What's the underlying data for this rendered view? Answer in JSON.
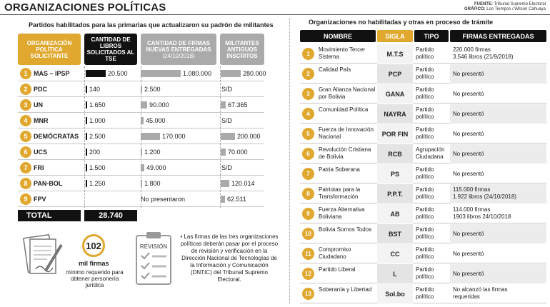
{
  "title": "ORGANIZACIONES POLÍTICAS",
  "source": {
    "fuente_label": "FUENTE:",
    "fuente": "Tribunal Supremo Electoral",
    "grafico_label": "GRÁFICO:",
    "grafico": "Los Tiempos / Wilson Cahuaya"
  },
  "left": {
    "heading": "Partidos habilitados para las primarias que actualizaron su padrón de militantes",
    "col1": "ORGANIZACIÓN POLÍTICA SOLICITANTE",
    "col2": "CANTIDAD DE LIBROS SOLICITADOS AL TSE",
    "col3": "CANTIDAD DE FIRMAS NUEVAS ENTREGADAS",
    "col3_sub": "(24/10/2018)",
    "col4": "MILITANTES ANTIGUOS INSCRITOS",
    "rows": [
      {
        "n": "1",
        "name": "MAS – IPSP",
        "libros": "20.500",
        "firmas": "1.080.000",
        "militantes": "280.000",
        "lb": 1.0,
        "fb": 1.0,
        "mb": 1.0
      },
      {
        "n": "2",
        "name": "PDC",
        "libros": "140",
        "firmas": "2.500",
        "militantes": "S/D",
        "lb": 0.01,
        "fb": 0.0,
        "mb": 0
      },
      {
        "n": "3",
        "name": "UN",
        "libros": "1.650",
        "firmas": "90.000",
        "militantes": "67.365",
        "lb": 0.02,
        "fb": 0.16,
        "mb": 0.24
      },
      {
        "n": "4",
        "name": "MNR",
        "libros": "1.000",
        "firmas": "45.000",
        "militantes": "S/D",
        "lb": 0.01,
        "fb": 0.08,
        "mb": 0
      },
      {
        "n": "5",
        "name": "DEMÓCRATAS",
        "libros": "2.500",
        "firmas": "170.000",
        "militantes": "200.000",
        "lb": 0.05,
        "fb": 0.48,
        "mb": 0.72
      },
      {
        "n": "6",
        "name": "UCS",
        "libros": "200",
        "firmas": "1.200",
        "militantes": "70.000",
        "lb": 0.0,
        "fb": 0.0,
        "mb": 0.25
      },
      {
        "n": "7",
        "name": "FRI",
        "libros": "1.500",
        "firmas": "49.000",
        "militantes": "S/D",
        "lb": 0.02,
        "fb": 0.09,
        "mb": 0
      },
      {
        "n": "8",
        "name": "PAN-BOL",
        "libros": "1.250",
        "firmas": "1.800",
        "militantes": "120.014",
        "lb": 0.02,
        "fb": 0.0,
        "mb": 0.43
      },
      {
        "n": "9",
        "name": "FPV",
        "libros": "",
        "firmas": "No presentaron",
        "militantes": "62.511",
        "lb": 0,
        "fb": 0,
        "mb": 0.22
      }
    ],
    "total_label": "TOTAL",
    "total_value": "28.740",
    "big_number": "102",
    "big_unit": "mil firmas",
    "big_caption": "mínimo requerido para obtener personería jurídica",
    "revision_label": "REVISIÓN",
    "note": "• Las firmas de las tres organizaciones políticas deberán pasar por el proceso de revisión y verificación en la Dirección Nacional de Tecnologías de la Información y Comunicación (DNTIC) del Tribunal Supremo Electoral."
  },
  "right": {
    "heading": "Organizaciones no habilitadas y otras en proceso de trámite",
    "col1": "NOMBRE",
    "col2": "SIGLA",
    "col3": "TIPO",
    "col4": "FIRMAS ENTREGADAS",
    "rows": [
      {
        "n": "1",
        "name": "Movimiento Tercer Sistema",
        "sigla": "M.T.S",
        "tipo": "Partido político",
        "firmas": "220.000 firmas",
        "firmas2": "3.546 libros (21/9/2018)"
      },
      {
        "n": "2",
        "name": "Calidad País",
        "sigla": "PCP",
        "tipo": "Partido político",
        "firmas": "No presentó",
        "firmas2": ""
      },
      {
        "n": "3",
        "name": "Gran Alianza Nacional por Bolivia",
        "sigla": "GANA",
        "tipo": "Partido político",
        "firmas": "No presentó",
        "firmas2": ""
      },
      {
        "n": "4",
        "name": "Comunidad Política",
        "sigla": "NAYRA",
        "tipo": "Partido político",
        "firmas": "No presentó",
        "firmas2": ""
      },
      {
        "n": "5",
        "name": "Fuerza de Innovación Nacional",
        "sigla": "POR FIN",
        "tipo": "Partido político",
        "firmas": "No presentó",
        "firmas2": ""
      },
      {
        "n": "6",
        "name": "Revolución Cristiana de Bolivia",
        "sigla": "RCB",
        "tipo": "Agrupación Ciudadana",
        "firmas": "No presentó",
        "firmas2": ""
      },
      {
        "n": "7",
        "name": "Patria Soberana",
        "sigla": "PS",
        "tipo": "Partido político",
        "firmas": "No presentó",
        "firmas2": ""
      },
      {
        "n": "8",
        "name": "Patriotas para la Transformación",
        "sigla": "P.P.T.",
        "tipo": "Partido político",
        "firmas": "115.000 firmas",
        "firmas2": "1.922 libros (24/10/2018)"
      },
      {
        "n": "9",
        "name": "Fuerza Alternativa Boliviana",
        "sigla": "AB",
        "tipo": "Partido político",
        "firmas": "114.000 firmas",
        "firmas2": "1903 libros 24/10/2018"
      },
      {
        "n": "10",
        "name": "Bolivia Somos Todos",
        "sigla": "BST",
        "tipo": "Partido político",
        "firmas": "No presentó",
        "firmas2": ""
      },
      {
        "n": "11",
        "name": "Compromiso Ciudadano",
        "sigla": "CC",
        "tipo": "Partido político",
        "firmas": "No presentó",
        "firmas2": ""
      },
      {
        "n": "12",
        "name": "Partido Liberal",
        "sigla": "L",
        "tipo": "Partido político",
        "firmas": "No presentó",
        "firmas2": ""
      },
      {
        "n": "13",
        "name": "Soberanía y Libertad",
        "sigla": "Sol.bo",
        "tipo": "Partido político",
        "firmas": "No alcanzó las firmas",
        "firmas2": "requeridas"
      }
    ]
  },
  "colors": {
    "accent": "#e0a82e",
    "dark": "#111111",
    "gray": "#aaaaaa"
  }
}
